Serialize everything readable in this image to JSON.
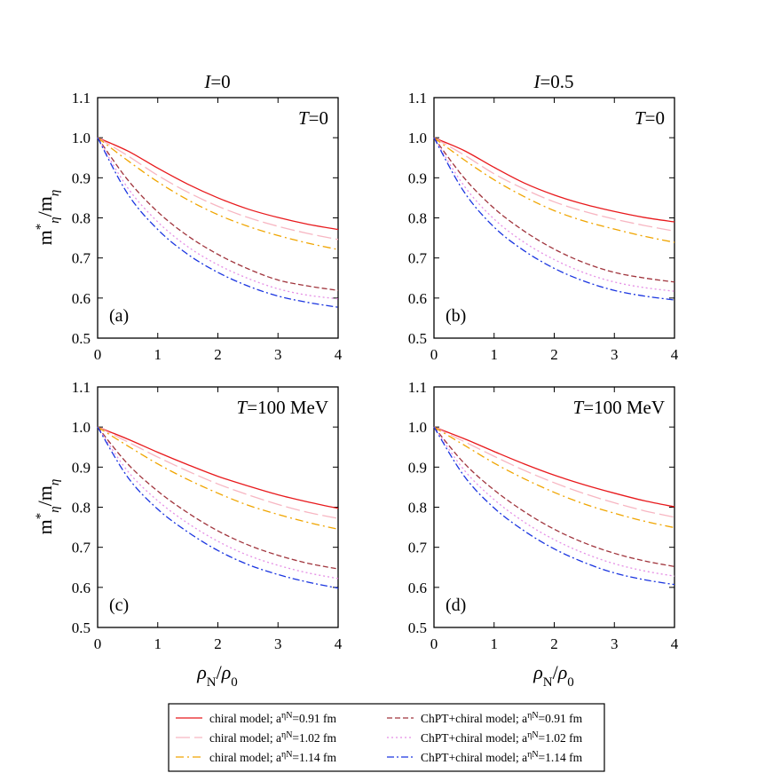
{
  "legend": {
    "entries": [
      {
        "base": "chiral model; a",
        "sup": "ηN",
        "tail": "=0.91 fm",
        "color": "#e8191c",
        "dash": ""
      },
      {
        "base": "chiral model; a",
        "sup": "ηN",
        "tail": "=1.02 fm",
        "color": "#f7b6c2",
        "dash": "16,5"
      },
      {
        "base": "chiral model; a",
        "sup": "ηN",
        "tail": "=1.14 fm",
        "color": "#f0a500",
        "dash": "9,4,2,4"
      },
      {
        "base": "ChPT+chiral model; a",
        "sup": "ηN",
        "tail": "=0.91 fm",
        "color": "#a0343c",
        "dash": "6,3"
      },
      {
        "base": "ChPT+chiral model; a",
        "sup": "ηN",
        "tail": "=1.02 fm",
        "color": "#e58ee5",
        "dash": "2,3"
      },
      {
        "base": "ChPT+chiral model; a",
        "sup": "ηN",
        "tail": "=1.14 fm",
        "color": "#1a35e0",
        "dash": "8,3,2,3"
      }
    ]
  },
  "chart_data": [
    {
      "type": "line",
      "panel_label": "(a)",
      "title": "I=0",
      "temp_label": "T=0",
      "xlabel": "",
      "ylabel": "m*η/mη",
      "xlim": [
        0,
        4
      ],
      "ylim": [
        0.5,
        1.1
      ],
      "xticks": [
        "0",
        "1",
        "2",
        "3",
        "4"
      ],
      "yticks": [
        "0.5",
        "0.6",
        "0.7",
        "0.8",
        "0.9",
        "1.0",
        "1.1"
      ],
      "x": [
        0,
        0.5,
        1,
        1.5,
        2,
        2.5,
        3,
        3.5,
        4
      ],
      "series": [
        {
          "values": [
            1.0,
            0.967,
            0.924,
            0.884,
            0.85,
            0.822,
            0.801,
            0.784,
            0.771
          ]
        },
        {
          "values": [
            1.0,
            0.955,
            0.906,
            0.864,
            0.829,
            0.801,
            0.779,
            0.761,
            0.746
          ]
        },
        {
          "values": [
            1.0,
            0.943,
            0.89,
            0.845,
            0.808,
            0.779,
            0.756,
            0.737,
            0.721
          ]
        },
        {
          "values": [
            1.0,
            0.895,
            0.815,
            0.755,
            0.709,
            0.673,
            0.645,
            0.63,
            0.619
          ]
        },
        {
          "values": [
            1.0,
            0.875,
            0.79,
            0.728,
            0.683,
            0.649,
            0.623,
            0.607,
            0.598
          ]
        },
        {
          "values": [
            1.0,
            0.86,
            0.771,
            0.709,
            0.664,
            0.63,
            0.605,
            0.589,
            0.577
          ]
        }
      ]
    },
    {
      "type": "line",
      "panel_label": "(b)",
      "title": "I=0.5",
      "temp_label": "T=0",
      "xlabel": "",
      "ylabel": "",
      "xlim": [
        0,
        4
      ],
      "ylim": [
        0.5,
        1.1
      ],
      "xticks": [
        "0",
        "1",
        "2",
        "3",
        "4"
      ],
      "yticks": [
        "0.5",
        "0.6",
        "0.7",
        "0.8",
        "0.9",
        "1.0",
        "1.1"
      ],
      "x": [
        0,
        0.5,
        1,
        1.5,
        2,
        2.5,
        3,
        3.5,
        4
      ],
      "series": [
        {
          "values": [
            1.0,
            0.968,
            0.926,
            0.887,
            0.857,
            0.834,
            0.816,
            0.801,
            0.79
          ]
        },
        {
          "values": [
            1.0,
            0.957,
            0.91,
            0.872,
            0.84,
            0.816,
            0.797,
            0.781,
            0.767
          ]
        },
        {
          "values": [
            1.0,
            0.945,
            0.895,
            0.853,
            0.818,
            0.792,
            0.772,
            0.754,
            0.739
          ]
        },
        {
          "values": [
            1.0,
            0.9,
            0.824,
            0.767,
            0.722,
            0.688,
            0.664,
            0.65,
            0.64
          ]
        },
        {
          "values": [
            1.0,
            0.88,
            0.797,
            0.739,
            0.696,
            0.663,
            0.64,
            0.626,
            0.617
          ]
        },
        {
          "values": [
            1.0,
            0.865,
            0.777,
            0.718,
            0.674,
            0.642,
            0.619,
            0.605,
            0.595
          ]
        }
      ]
    },
    {
      "type": "line",
      "panel_label": "(c)",
      "title": "",
      "temp_label": "T=100 MeV",
      "xlabel": "ρN/ρ0",
      "ylabel": "m*η/mη",
      "xlim": [
        0,
        4
      ],
      "ylim": [
        0.5,
        1.1
      ],
      "xticks": [
        "0",
        "1",
        "2",
        "3",
        "4"
      ],
      "yticks": [
        "0.5",
        "0.6",
        "0.7",
        "0.8",
        "0.9",
        "1.0",
        "1.1"
      ],
      "x": [
        0,
        0.5,
        1,
        1.5,
        2,
        2.5,
        3,
        3.5,
        4
      ],
      "series": [
        {
          "values": [
            1.0,
            0.97,
            0.937,
            0.906,
            0.877,
            0.853,
            0.831,
            0.813,
            0.797
          ]
        },
        {
          "values": [
            1.0,
            0.963,
            0.925,
            0.89,
            0.858,
            0.831,
            0.807,
            0.787,
            0.772
          ]
        },
        {
          "values": [
            1.0,
            0.953,
            0.908,
            0.869,
            0.835,
            0.805,
            0.782,
            0.762,
            0.745
          ]
        },
        {
          "values": [
            1.0,
            0.908,
            0.84,
            0.786,
            0.741,
            0.706,
            0.68,
            0.66,
            0.646
          ]
        },
        {
          "values": [
            1.0,
            0.89,
            0.816,
            0.76,
            0.715,
            0.68,
            0.655,
            0.636,
            0.622
          ]
        },
        {
          "values": [
            1.0,
            0.875,
            0.795,
            0.738,
            0.692,
            0.657,
            0.632,
            0.613,
            0.598
          ]
        }
      ]
    },
    {
      "type": "line",
      "panel_label": "(d)",
      "title": "",
      "temp_label": "T=100 MeV",
      "xlabel": "ρN/ρ0",
      "ylabel": "",
      "xlim": [
        0,
        4
      ],
      "ylim": [
        0.5,
        1.1
      ],
      "xticks": [
        "0",
        "1",
        "2",
        "3",
        "4"
      ],
      "yticks": [
        "0.5",
        "0.6",
        "0.7",
        "0.8",
        "0.9",
        "1.0",
        "1.1"
      ],
      "x": [
        0,
        0.5,
        1,
        1.5,
        2,
        2.5,
        3,
        3.5,
        4
      ],
      "series": [
        {
          "values": [
            1.0,
            0.971,
            0.939,
            0.908,
            0.88,
            0.856,
            0.835,
            0.816,
            0.801
          ]
        },
        {
          "values": [
            1.0,
            0.964,
            0.927,
            0.892,
            0.861,
            0.834,
            0.811,
            0.791,
            0.775
          ]
        },
        {
          "values": [
            1.0,
            0.955,
            0.91,
            0.871,
            0.837,
            0.808,
            0.785,
            0.765,
            0.749
          ]
        },
        {
          "values": [
            1.0,
            0.91,
            0.843,
            0.789,
            0.745,
            0.711,
            0.685,
            0.666,
            0.652
          ]
        },
        {
          "values": [
            1.0,
            0.893,
            0.819,
            0.763,
            0.719,
            0.685,
            0.659,
            0.641,
            0.628
          ]
        },
        {
          "values": [
            1.0,
            0.878,
            0.798,
            0.741,
            0.696,
            0.662,
            0.636,
            0.619,
            0.607
          ]
        }
      ]
    }
  ]
}
